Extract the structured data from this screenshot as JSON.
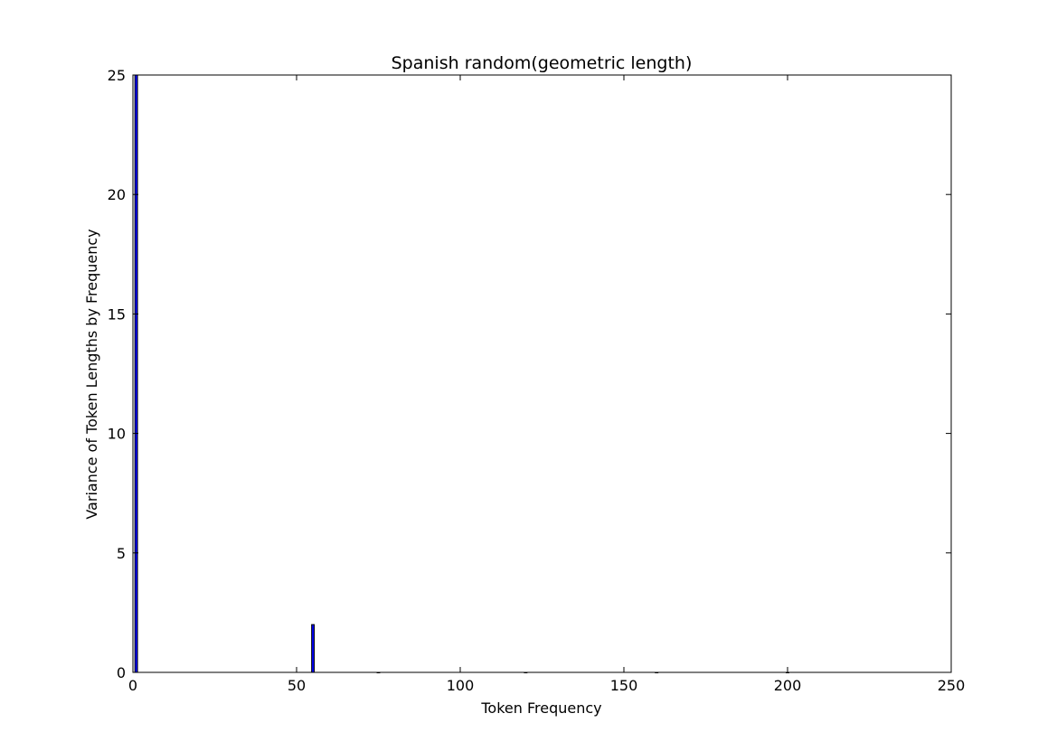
{
  "chart_data": {
    "type": "bar",
    "title": "Spanish random(geometric length)",
    "xlabel": "Token Frequency",
    "ylabel": "Variance of Token Lengths by Frequency",
    "xlim": [
      0,
      250
    ],
    "ylim": [
      0,
      25
    ],
    "xticks": [
      0,
      50,
      100,
      150,
      200,
      250
    ],
    "yticks": [
      0,
      5,
      10,
      15,
      20,
      25
    ],
    "grid": false,
    "bar_color": "#0000ff",
    "edge_color": "#000000",
    "bar_width": 0.8,
    "series": [
      {
        "x": [
          1,
          55,
          75,
          120,
          160,
          200
        ],
        "values": [
          25,
          2,
          0,
          0,
          0,
          0
        ]
      }
    ]
  }
}
